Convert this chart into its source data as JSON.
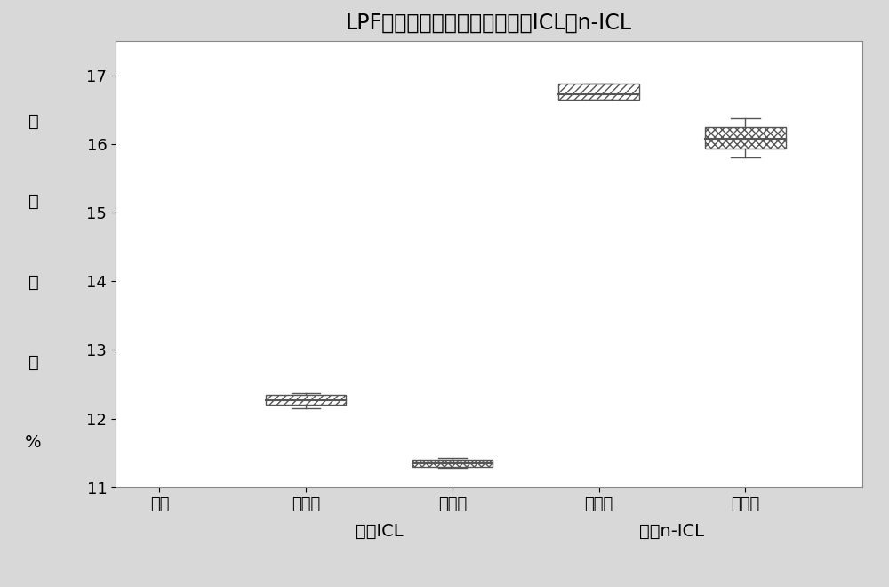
{
  "title": "LPF阴极、石墨阳极、小型电池ICL和n-ICL",
  "ylabel_chars": [
    "容",
    "量",
    "损",
    "失",
    "%"
  ],
  "xlabel_groups": [
    {
      "label": "形成ICL",
      "x_center": 1.5
    },
    {
      "label": "定型n-ICL",
      "x_center": 3.5
    }
  ],
  "ylim": [
    11.0,
    17.5
  ],
  "yticks": [
    11,
    12,
    13,
    14,
    15,
    16,
    17
  ],
  "boxes": [
    {
      "x": 1,
      "q1": 12.2,
      "median": 12.27,
      "q3": 12.35,
      "whisker_low": 12.15,
      "whisker_high": 12.37,
      "hatch": "////",
      "facecolor": "white",
      "edgecolor": "#555555"
    },
    {
      "x": 2,
      "q1": 11.3,
      "median": 11.35,
      "q3": 11.4,
      "whisker_low": 11.28,
      "whisker_high": 11.42,
      "hatch": "xxxx",
      "facecolor": "white",
      "edgecolor": "#555555"
    },
    {
      "x": 3,
      "q1": 16.65,
      "median": 16.73,
      "q3": 16.88,
      "whisker_low": 16.65,
      "whisker_high": 16.88,
      "hatch": "////",
      "facecolor": "white",
      "edgecolor": "#555555"
    },
    {
      "x": 4,
      "q1": 15.93,
      "median": 16.08,
      "q3": 16.25,
      "whisker_low": 15.8,
      "whisker_high": 16.38,
      "hatch": "xxxx",
      "facecolor": "white",
      "edgecolor": "#555555"
    }
  ],
  "xtick_labels": [
    "项目",
    "对照组",
    "实验组",
    "对照组",
    "实验组"
  ],
  "xtick_positions": [
    0,
    1,
    2,
    3,
    4
  ],
  "box_width": 0.55,
  "outer_bg_color": "#d8d8d8",
  "plot_bg_color": "#ffffff",
  "title_fontsize": 17,
  "axis_label_fontsize": 14,
  "tick_fontsize": 13,
  "group_label_fontsize": 14
}
